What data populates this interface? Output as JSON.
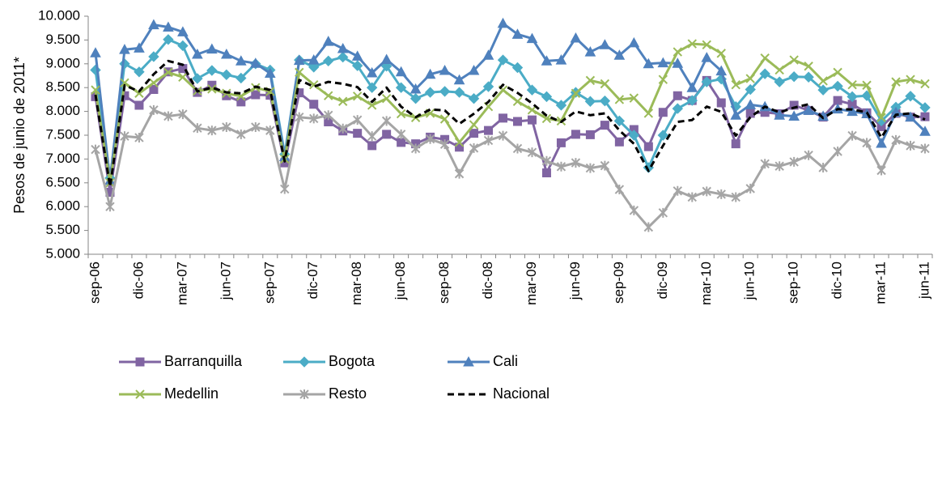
{
  "chart_data": {
    "type": "line",
    "y_label": "Pesos de junio de 2011*",
    "categories": [
      "sep-06",
      null,
      null,
      "dic-06",
      null,
      null,
      "mar-07",
      null,
      null,
      "jun-07",
      null,
      null,
      "sep-07",
      null,
      null,
      "dic-07",
      null,
      null,
      "mar-08",
      null,
      null,
      "jun-08",
      null,
      null,
      "sep-08",
      null,
      null,
      "dic-08",
      null,
      null,
      "mar-09",
      null,
      null,
      "jun-09",
      null,
      null,
      "sep-09",
      null,
      null,
      "dic-09",
      null,
      null,
      "mar-10",
      null,
      null,
      "jun-10",
      null,
      null,
      "sep-10",
      null,
      null,
      "dic-10",
      null,
      null,
      "mar-11",
      null,
      null,
      "jun-11"
    ],
    "ylim": [
      5000,
      10000
    ],
    "yticks": [
      {
        "value": 5000,
        "label": "5.000"
      },
      {
        "value": 5500,
        "label": "5.500"
      },
      {
        "value": 6000,
        "label": "6.000"
      },
      {
        "value": 6500,
        "label": "6.500"
      },
      {
        "value": 7000,
        "label": "7.000"
      },
      {
        "value": 7500,
        "label": "7.500"
      },
      {
        "value": 8000,
        "label": "8.000"
      },
      {
        "value": 8500,
        "label": "8.500"
      },
      {
        "value": 9000,
        "label": "9.000"
      },
      {
        "value": 9500,
        "label": "9.500"
      },
      {
        "value": 10000,
        "label": "10.000"
      }
    ],
    "grid": false,
    "legend": "lower left",
    "series": [
      {
        "name": "Barranquilla",
        "color": "#8064a2",
        "marker": "square",
        "dashed": false,
        "values": [
          8310,
          6300,
          8330,
          8130,
          8460,
          8830,
          8900,
          8400,
          8550,
          8330,
          8200,
          8350,
          8340,
          6920,
          8390,
          8150,
          7780,
          7590,
          7540,
          7280,
          7520,
          7350,
          7320,
          7460,
          7410,
          7250,
          7540,
          7600,
          7860,
          7790,
          7820,
          6710,
          7340,
          7520,
          7510,
          7710,
          7360,
          7620,
          7260,
          7980,
          8330,
          8230,
          8650,
          8180,
          7320,
          7960,
          7980,
          7950,
          8130,
          8020,
          7880,
          8230,
          8150,
          7970,
          7680,
          7960,
          7880,
          7890
        ]
      },
      {
        "name": "Bogota",
        "color": "#4bacc6",
        "marker": "diamond",
        "dashed": false,
        "values": [
          8870,
          6600,
          9000,
          8830,
          9150,
          9510,
          9380,
          8690,
          8860,
          8770,
          8700,
          9000,
          8870,
          7100,
          9080,
          8930,
          9060,
          9140,
          8960,
          8500,
          8950,
          8500,
          8270,
          8400,
          8420,
          8400,
          8270,
          8520,
          9080,
          8920,
          8450,
          8310,
          8130,
          8400,
          8210,
          8220,
          7800,
          7500,
          6820,
          7500,
          8060,
          8230,
          8620,
          8680,
          8100,
          8460,
          8790,
          8620,
          8730,
          8720,
          8450,
          8530,
          8310,
          8330,
          7800,
          8090,
          8320,
          8080
        ]
      },
      {
        "name": "Cali",
        "color": "#4f81bd",
        "marker": "triangle",
        "dashed": false,
        "values": [
          9230,
          6550,
          9300,
          9330,
          9820,
          9770,
          9670,
          9200,
          9310,
          9200,
          9060,
          9010,
          8800,
          7050,
          9070,
          9080,
          9470,
          9320,
          9160,
          8810,
          9090,
          8830,
          8470,
          8780,
          8860,
          8660,
          8860,
          9180,
          9850,
          9620,
          9530,
          9060,
          9080,
          9540,
          9250,
          9400,
          9180,
          9440,
          9000,
          9020,
          9010,
          8500,
          9130,
          8850,
          7920,
          8140,
          8100,
          7920,
          7900,
          8020,
          7900,
          8050,
          8000,
          7950,
          7330,
          7980,
          7880,
          7580
        ]
      },
      {
        "name": "Medellin",
        "color": "#9bbb59",
        "marker": "x",
        "dashed": false,
        "values": [
          8450,
          6500,
          8600,
          8380,
          8600,
          8820,
          8720,
          8430,
          8470,
          8380,
          8320,
          8500,
          8420,
          7000,
          8820,
          8560,
          8330,
          8210,
          8320,
          8130,
          8270,
          7950,
          7870,
          7960,
          7840,
          7350,
          7720,
          8100,
          8450,
          8210,
          8030,
          7850,
          7800,
          8380,
          8650,
          8580,
          8250,
          8280,
          7960,
          8670,
          9250,
          9420,
          9400,
          9220,
          8560,
          8690,
          9120,
          8870,
          9080,
          8950,
          8640,
          8820,
          8560,
          8550,
          7870,
          8620,
          8670,
          8580
        ]
      },
      {
        "name": "Resto",
        "color": "#a5a5a5",
        "marker": "star",
        "dashed": false,
        "values": [
          7200,
          6000,
          7480,
          7450,
          8030,
          7900,
          7940,
          7650,
          7600,
          7670,
          7520,
          7670,
          7600,
          6370,
          7880,
          7850,
          7920,
          7640,
          7820,
          7480,
          7800,
          7520,
          7220,
          7420,
          7310,
          6690,
          7230,
          7390,
          7490,
          7220,
          7140,
          6960,
          6840,
          6920,
          6810,
          6860,
          6360,
          5920,
          5570,
          5870,
          6330,
          6200,
          6320,
          6260,
          6200,
          6380,
          6900,
          6850,
          6940,
          7080,
          6820,
          7160,
          7490,
          7340,
          6760,
          7400,
          7280,
          7220
        ]
      },
      {
        "name": "Nacional",
        "color": "#000000",
        "marker": "none",
        "dashed": true,
        "values": [
          8350,
          6420,
          8550,
          8420,
          8780,
          9060,
          8980,
          8420,
          8500,
          8400,
          8380,
          8520,
          8450,
          6950,
          8660,
          8520,
          8620,
          8580,
          8510,
          8200,
          8500,
          8100,
          7880,
          8040,
          8020,
          7740,
          7950,
          8200,
          8560,
          8390,
          8170,
          7910,
          7780,
          8000,
          7920,
          7960,
          7600,
          7320,
          6750,
          7280,
          7780,
          7820,
          8100,
          7990,
          7490,
          7880,
          8100,
          7980,
          8080,
          8150,
          7860,
          8050,
          8040,
          7980,
          7450,
          7930,
          7960,
          7830
        ]
      }
    ]
  }
}
